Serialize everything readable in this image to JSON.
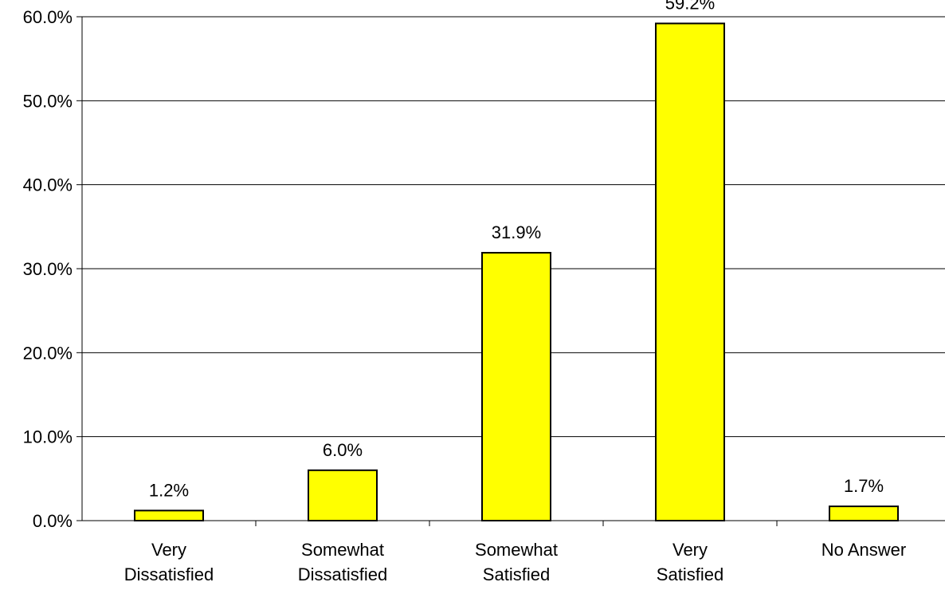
{
  "chart_data": {
    "type": "bar",
    "title": "",
    "xlabel": "",
    "ylabel": "",
    "categories": [
      [
        "Very",
        "Dissatisfied"
      ],
      [
        "Somewhat",
        "Dissatisfied"
      ],
      [
        "Somewhat",
        "Satisfied"
      ],
      [
        "Very",
        "Satisfied"
      ],
      [
        "No Answer"
      ]
    ],
    "values": [
      1.2,
      6.0,
      31.9,
      59.2,
      1.7
    ],
    "data_labels": [
      "1.2%",
      "6.0%",
      "31.9%",
      "59.2%",
      "1.7%"
    ],
    "ylim": [
      0,
      60
    ],
    "yticks": [
      0,
      10,
      20,
      30,
      40,
      50,
      60
    ],
    "ytick_labels": [
      "0.0%",
      "10.0%",
      "20.0%",
      "30.0%",
      "40.0%",
      "50.0%",
      "60.0%"
    ],
    "grid": true,
    "legend": "none",
    "bar_color": "#FFFF00",
    "bar_edge_color": "#000000"
  }
}
